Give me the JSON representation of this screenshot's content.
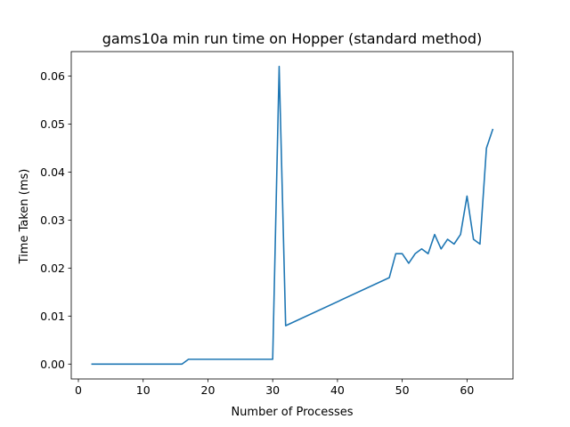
{
  "chart_data": {
    "type": "line",
    "title": "gams10a min run time on Hopper (standard method)",
    "xlabel": "Number of Processes",
    "ylabel": "Time Taken (ms)",
    "xlim": [
      -1.1,
      67.1
    ],
    "ylim": [
      -0.0031,
      0.0651
    ],
    "xticks": [
      0,
      10,
      20,
      30,
      40,
      50,
      60
    ],
    "yticks": [
      0.0,
      0.01,
      0.02,
      0.03,
      0.04,
      0.05,
      0.06
    ],
    "ytick_labels": [
      "0.00",
      "0.01",
      "0.02",
      "0.03",
      "0.04",
      "0.05",
      "0.06"
    ],
    "grid": false,
    "series": [
      {
        "color": "#1f77b4",
        "x": [
          2,
          16,
          17,
          30,
          31,
          32,
          48,
          49,
          50,
          51,
          52,
          53,
          54,
          55,
          56,
          57,
          58,
          59,
          60,
          61,
          62,
          63,
          64
        ],
        "y": [
          0.0,
          0.0,
          0.001,
          0.001,
          0.062,
          0.008,
          0.018,
          0.023,
          0.023,
          0.021,
          0.023,
          0.024,
          0.023,
          0.027,
          0.024,
          0.026,
          0.025,
          0.027,
          0.035,
          0.026,
          0.025,
          0.045,
          0.049
        ]
      }
    ]
  }
}
